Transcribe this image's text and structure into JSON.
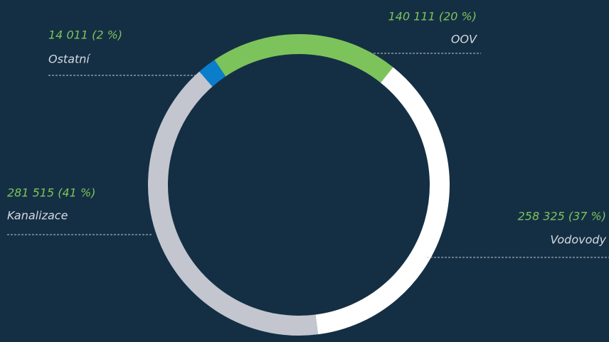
{
  "chart_data": {
    "type": "pie",
    "categories": [
      "OOV",
      "Vodovody",
      "Kanalizace",
      "Ostatní"
    ],
    "values": [
      140111,
      258325,
      281515,
      14011
    ],
    "value_labels": [
      "140 111 (20 %)",
      "258 325 (37 %)",
      "281 515 (41 %)",
      "14 011 (2 %)"
    ],
    "colors": [
      "#7dc35b",
      "#ffffff",
      "#c3c5cf",
      "#0a7ecb"
    ]
  }
}
